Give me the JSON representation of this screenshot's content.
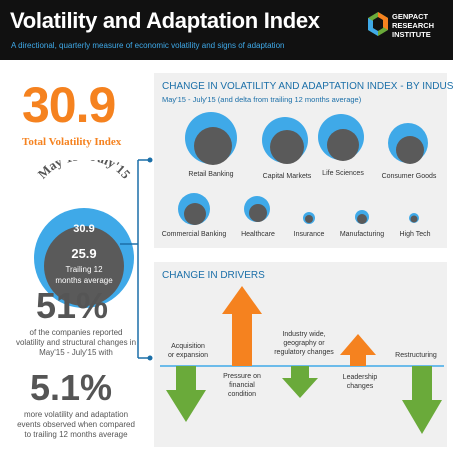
{
  "header": {
    "title": "Volatility and Adaptation Index",
    "subtitle": "A directional, quarterly measure of economic volatility and signs of adaptation",
    "logo_line1": "GENPACT",
    "logo_line2": "RESEARCH",
    "logo_line3": "INSTITUTE"
  },
  "summary": {
    "index_value": "30.9",
    "index_label": "Total Volatility Index",
    "period": "May'15 - July'15",
    "period_value": "30.9",
    "trailing_value": "25.9",
    "trailing_label_1": "Trailing 12",
    "trailing_label_2": "months average",
    "stat1_value": "51%",
    "stat1_desc_1": "of the companies reported",
    "stat1_desc_2": "volatility and structural changes in",
    "stat1_desc_3": "May'15 - July'15 with",
    "stat2_value": "5.1%",
    "stat2_desc_1": "more volatility and adaptation",
    "stat2_desc_2": "events observed when compared",
    "stat2_desc_3": "to trailing 12 months average"
  },
  "industry_panel": {
    "title": "CHANGE IN VOLATILITY AND ADAPTATION INDEX - BY INDUSTRY",
    "subtitle": "May'15 - July'15 (and delta from trailing 12 months average)",
    "industries": [
      {
        "name": "Retail Banking"
      },
      {
        "name": "Capital Markets"
      },
      {
        "name": "Life Sciences"
      },
      {
        "name": "Consumer Goods"
      },
      {
        "name": "Commercial Banking"
      },
      {
        "name": "Healthcare"
      },
      {
        "name": "Insurance"
      },
      {
        "name": "Manufacturing"
      },
      {
        "name": "High Tech"
      }
    ]
  },
  "drivers_panel": {
    "title": "CHANGE IN DRIVERS",
    "drivers": [
      {
        "name_1": "Acquisition",
        "name_2": "or expansion",
        "name_3": "",
        "direction": "down"
      },
      {
        "name_1": "Pressure on",
        "name_2": "financial",
        "name_3": "condition",
        "direction": "up"
      },
      {
        "name_1": "Industry wide,",
        "name_2": "geography or",
        "name_3": "regulatory changes",
        "direction": "down"
      },
      {
        "name_1": "Leadership",
        "name_2": "changes",
        "name_3": "",
        "direction": "up"
      },
      {
        "name_1": "Restructuring",
        "name_2": "",
        "name_3": "",
        "direction": "down"
      }
    ]
  },
  "colors": {
    "orange": "#f5821f",
    "blue": "#3fa9e8",
    "green": "#6aaa3a",
    "grey": "#5a5a5a",
    "navy": "#1b6fa8"
  }
}
